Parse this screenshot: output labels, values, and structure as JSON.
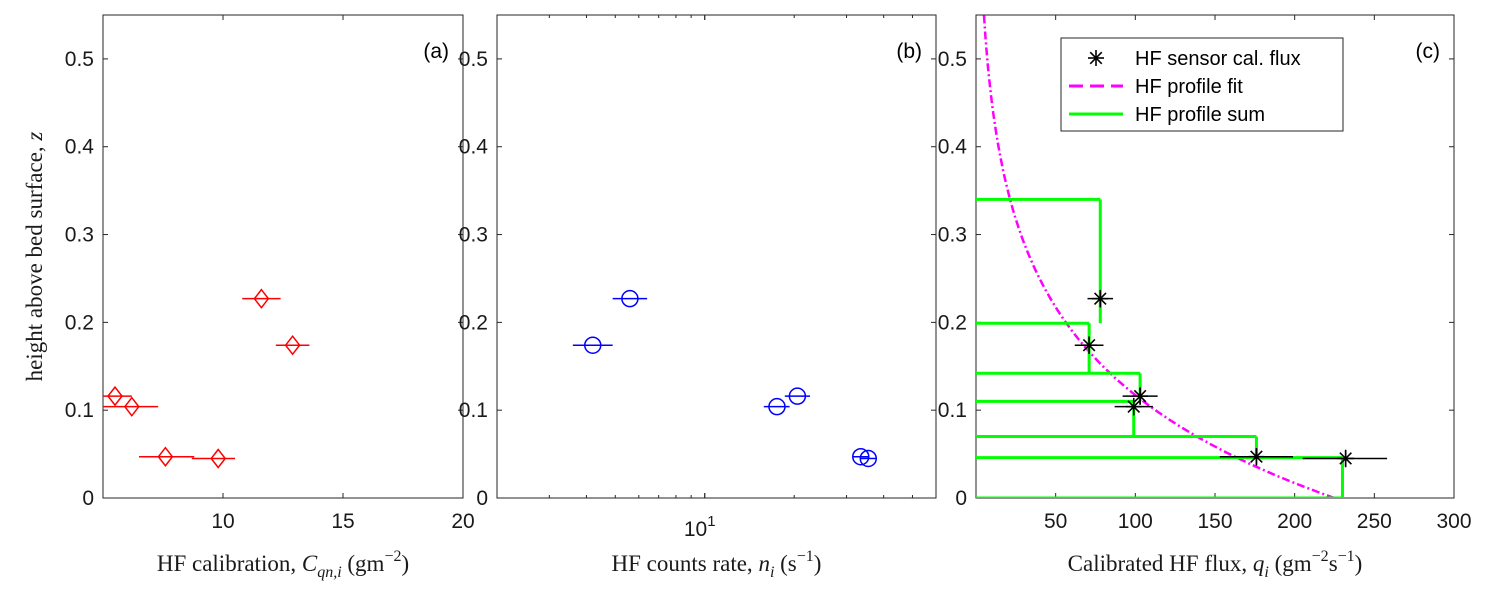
{
  "chart_data": [
    {
      "type": "scatter",
      "panel_label": "(a)",
      "xlabel_text": "HF calibration,",
      "xlabel_math": "C",
      "xlabel_sub": "qn,i",
      "xlabel_unit_pre": "(gm",
      "xlabel_unit_sup": "−2",
      "xlabel_unit_post": ")",
      "ylabel_text": "height above bed surface,",
      "ylabel_math": "z",
      "xlim": [
        5,
        20
      ],
      "ylim": [
        0,
        0.55
      ],
      "xscale": "linear",
      "xticks": [
        10,
        15,
        20
      ],
      "xtick_labels": [
        "10",
        "15",
        "20"
      ],
      "yticks": [
        0,
        0.1,
        0.2,
        0.3,
        0.4,
        0.5
      ],
      "ytick_labels": [
        "0",
        "0.1",
        "0.2",
        "0.3",
        "0.4",
        "0.5"
      ],
      "grid": false,
      "marker": "diamond",
      "color": "#ff0000",
      "points": [
        {
          "x": 5.5,
          "y": 0.116,
          "xerr": [
            4.9,
            6.2
          ]
        },
        {
          "x": 6.2,
          "y": 0.104,
          "xerr": [
            5.0,
            7.3
          ]
        },
        {
          "x": 7.6,
          "y": 0.047,
          "xerr": [
            6.5,
            8.8
          ]
        },
        {
          "x": 9.8,
          "y": 0.045,
          "xerr": [
            8.7,
            10.5
          ]
        },
        {
          "x": 11.6,
          "y": 0.227,
          "xerr": [
            10.8,
            12.4
          ]
        },
        {
          "x": 12.9,
          "y": 0.174,
          "xerr": [
            12.2,
            13.6
          ]
        }
      ]
    },
    {
      "type": "scatter",
      "panel_label": "(b)",
      "xlabel_text": "HF counts rate,",
      "xlabel_math": "n",
      "xlabel_sub": "i",
      "xlabel_unit_pre": "(s",
      "xlabel_unit_sup": "−1",
      "xlabel_unit_post": ")",
      "xlim": [
        2,
        60
      ],
      "ylim": [
        0,
        0.55
      ],
      "xscale": "log",
      "xticks": [
        10
      ],
      "xtick_labels": [
        "10"
      ],
      "xtick_sup": [
        "1"
      ],
      "yticks": [
        0,
        0.1,
        0.2,
        0.3,
        0.4,
        0.5
      ],
      "ytick_labels": [
        "0",
        "0.1",
        "0.2",
        "0.3",
        "0.4",
        "0.5"
      ],
      "grid": false,
      "marker": "circle",
      "color": "#0000ff",
      "points": [
        {
          "x": 4.2,
          "y": 0.174,
          "xerr": [
            3.6,
            4.9
          ]
        },
        {
          "x": 5.6,
          "y": 0.227,
          "xerr": [
            4.9,
            6.4
          ]
        },
        {
          "x": 17.5,
          "y": 0.104,
          "xerr": [
            15.8,
            19.3
          ]
        },
        {
          "x": 20.5,
          "y": 0.116,
          "xerr": [
            18.6,
            22.6
          ]
        },
        {
          "x": 33.5,
          "y": 0.047,
          "xerr": [
            31.5,
            35.6
          ]
        },
        {
          "x": 35.5,
          "y": 0.045,
          "xerr": [
            33.5,
            37.7
          ]
        }
      ]
    },
    {
      "type": "line",
      "panel_label": "(c)",
      "xlabel_text": "Calibrated HF flux,",
      "xlabel_math": "q",
      "xlabel_sub": "i",
      "xlabel_unit_pre": "(gm",
      "xlabel_unit_sup": "−2",
      "xlabel_unit_mid": "s",
      "xlabel_unit_sup2": "−1",
      "xlabel_unit_post": ")",
      "xlim": [
        0,
        300
      ],
      "ylim": [
        0,
        0.55
      ],
      "xscale": "linear",
      "xticks": [
        50,
        100,
        150,
        200,
        250,
        300
      ],
      "xtick_labels": [
        "50",
        "100",
        "150",
        "200",
        "250",
        "300"
      ],
      "yticks": [
        0,
        0.1,
        0.2,
        0.3,
        0.4,
        0.5
      ],
      "ytick_labels": [
        "0",
        "0.1",
        "0.2",
        "0.3",
        "0.4",
        "0.5"
      ],
      "grid": false,
      "legend_position": "top",
      "series": [
        {
          "name": "HF sensor cal. flux",
          "kind": "marker",
          "color": "#000000",
          "points": [
            {
              "x": 78,
              "y": 0.227,
              "xerr": [
                70,
                86
              ],
              "yerr": [
                0.217,
                0.237
              ]
            },
            {
              "x": 71,
              "y": 0.174,
              "xerr": [
                62,
                80
              ],
              "yerr": [
                0.164,
                0.184
              ]
            },
            {
              "x": 99,
              "y": 0.104,
              "xerr": [
                87,
                111
              ],
              "yerr": [
                0.094,
                0.114
              ]
            },
            {
              "x": 103,
              "y": 0.116,
              "xerr": [
                92,
                114
              ],
              "yerr": [
                0.106,
                0.126
              ]
            },
            {
              "x": 176,
              "y": 0.047,
              "xerr": [
                153,
                199
              ],
              "yerr": [
                0.037,
                0.057
              ]
            },
            {
              "x": 232,
              "y": 0.045,
              "xerr": [
                205,
                258
              ],
              "yerr": [
                0.035,
                0.055
              ]
            }
          ]
        },
        {
          "name": "HF profile fit",
          "kind": "dashdot",
          "color": "#ff00ff",
          "q0": 225,
          "zq": 0.1445
        },
        {
          "name": "HF profile sum",
          "kind": "step",
          "color": "#00ff00",
          "bins": [
            {
              "y0": 0.0,
              "y1": 0.046,
              "x": 230
            },
            {
              "y0": 0.046,
              "y1": 0.07,
              "x": 176
            },
            {
              "y0": 0.07,
              "y1": 0.11,
              "x": 99
            },
            {
              "y0": 0.11,
              "y1": 0.142,
              "x": 103
            },
            {
              "y0": 0.142,
              "y1": 0.199,
              "x": 71
            },
            {
              "y0": 0.199,
              "y1": 0.34,
              "x": 78
            }
          ]
        }
      ]
    }
  ]
}
